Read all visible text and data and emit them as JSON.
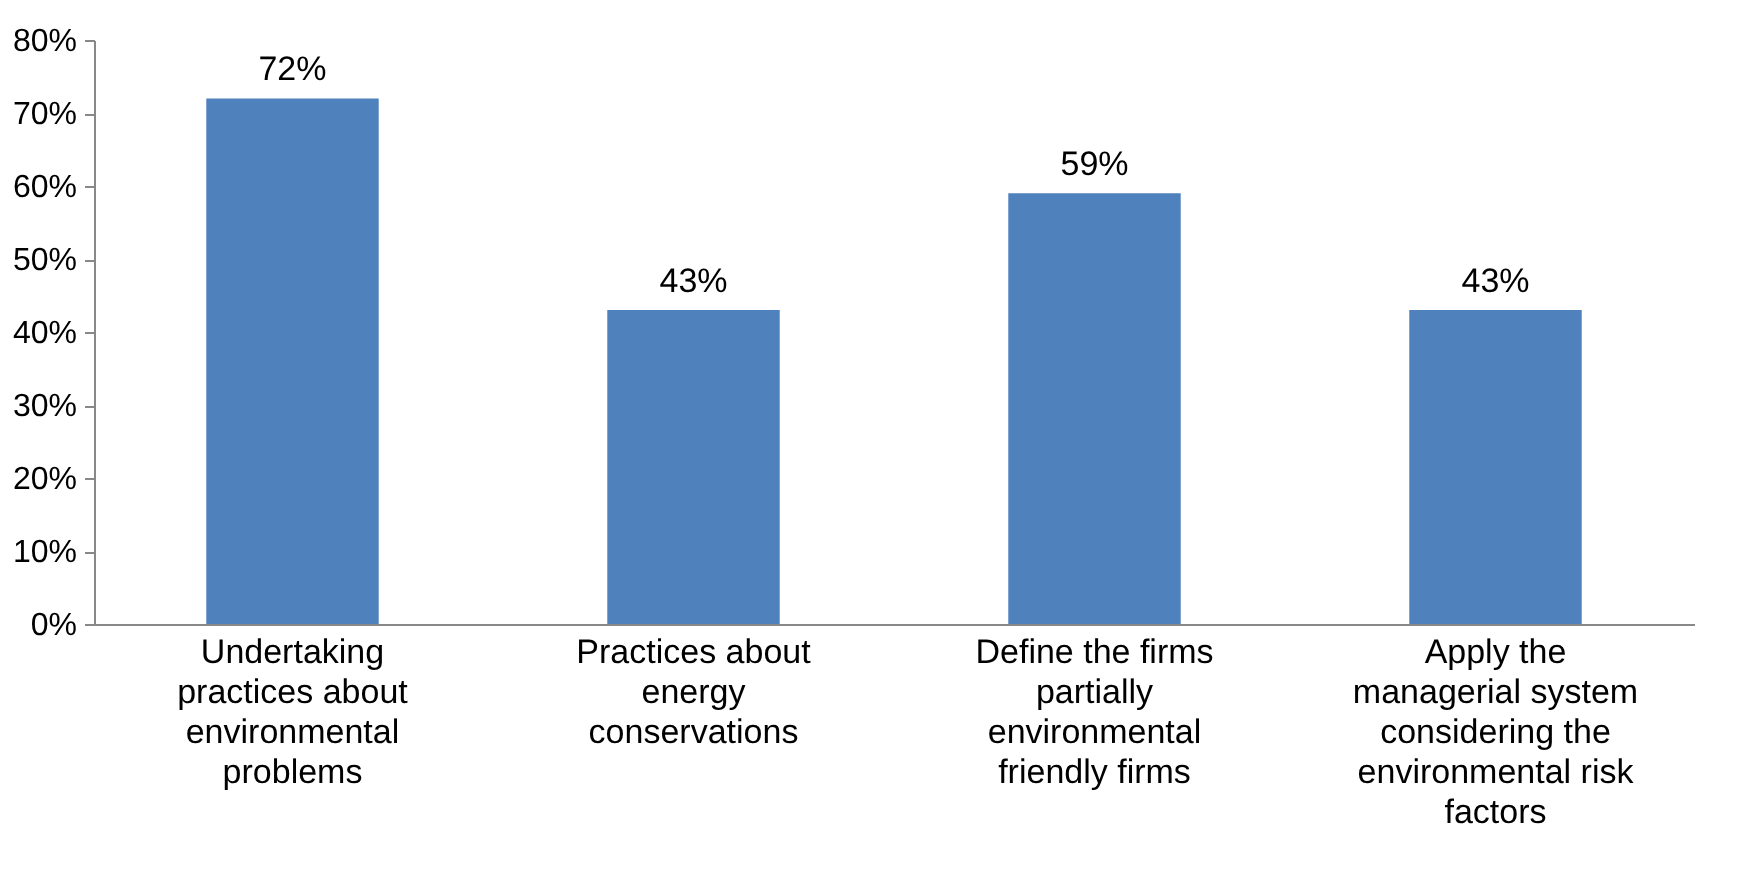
{
  "chart_data": {
    "type": "bar",
    "categories": [
      "Undertaking practices about environmental problems",
      "Practices about energy conservations",
      "Define the firms partially environmental friendly firms",
      "Apply the managerial system considering the environmental risk factors"
    ],
    "values": [
      72,
      43,
      59,
      43
    ],
    "value_labels": [
      "72%",
      "43%",
      "59%",
      "43%"
    ],
    "color": "#4f81bd",
    "ylim": [
      0,
      80
    ],
    "yticks": [
      {
        "value": 0,
        "label": "0%"
      },
      {
        "value": 10,
        "label": "10%"
      },
      {
        "value": 20,
        "label": "20%"
      },
      {
        "value": 30,
        "label": "30%"
      },
      {
        "value": 40,
        "label": "40%"
      },
      {
        "value": 50,
        "label": "50%"
      },
      {
        "value": 60,
        "label": "60%"
      },
      {
        "value": 70,
        "label": "70%"
      },
      {
        "value": 80,
        "label": "80%"
      }
    ],
    "grid": false
  }
}
